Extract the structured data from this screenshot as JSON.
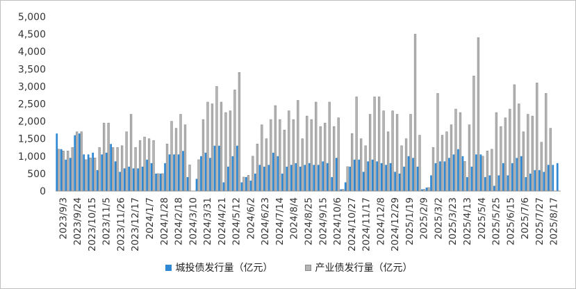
{
  "chart_data": {
    "type": "bar",
    "ylim": [
      0,
      5000
    ],
    "yticks": [
      "0",
      "500",
      "1,000",
      "1,500",
      "2,000",
      "2,500",
      "3,000",
      "3,500",
      "4,000",
      "4,500",
      "5,000"
    ],
    "grid": false,
    "legend_position": "bottom",
    "colors": {
      "chengtou": "#2e88d3",
      "chanye": "#b4b4b4"
    },
    "xtick_labels": [
      "2023/9/3",
      "2023/9/24",
      "2023/10/15",
      "2023/11/5",
      "2023/11/26",
      "2023/12/17",
      "2024/1/7",
      "2024/1/28",
      "2024/2/18",
      "2024/3/10",
      "2024/3/31",
      "2024/4/21",
      "2024/5/12",
      "2024/6/2",
      "2024/6/23",
      "2024/7/14",
      "2024/8/4",
      "2024/8/25",
      "2024/9/15",
      "2024/10/6",
      "2024/10/27",
      "2024/11/17",
      "2024/12/8",
      "2024/12/29",
      "2025/1/19",
      "2025/2/9",
      "2025/3/2",
      "2025/3/23",
      "2025/4/13",
      "2025/5/4",
      "2025/5/25",
      "2025/6/15",
      "2025/7/6",
      "2025/7/27",
      "2025/8/17"
    ],
    "series": [
      {
        "name": "城投债发行量（亿元）",
        "values": [
          1650,
          1200,
          900,
          950,
          1600,
          1650,
          1050,
          1050,
          1100,
          600,
          1050,
          1100,
          1350,
          850,
          550,
          650,
          700,
          650,
          650,
          700,
          900,
          800,
          500,
          500,
          800,
          1050,
          1050,
          1050,
          1150,
          400,
          0,
          350,
          1000,
          1100,
          950,
          1300,
          1300,
          250,
          700,
          1000,
          1300,
          250,
          400,
          300,
          500,
          750,
          700,
          750,
          1100,
          1000,
          500,
          700,
          750,
          800,
          700,
          750,
          800,
          750,
          750,
          850,
          800,
          400,
          950,
          50,
          250,
          700,
          900,
          900,
          550,
          850,
          900,
          850,
          800,
          750,
          800,
          550,
          500,
          700,
          1000,
          950,
          700,
          50,
          100,
          450,
          800,
          850,
          850,
          950,
          1050,
          1200,
          1000,
          400,
          700,
          1050,
          1050,
          400,
          450,
          150,
          450,
          800,
          450,
          800,
          950,
          1000,
          400,
          500,
          600,
          600,
          550,
          750,
          750,
          800
        ]
      },
      {
        "name": "产业债发行量（亿元）",
        "values": [
          1200,
          1150,
          1150,
          1250,
          1700,
          1700,
          900,
          950,
          950,
          1250,
          1950,
          1950,
          1250,
          1250,
          1300,
          1700,
          2200,
          1250,
          1450,
          1550,
          1500,
          1450,
          500,
          500,
          1350,
          2000,
          1800,
          2200,
          1900,
          750,
          0,
          900,
          2050,
          2550,
          2500,
          3000,
          2550,
          2250,
          2300,
          2900,
          3400,
          400,
          450,
          1000,
          1350,
          1900,
          1500,
          2050,
          2450,
          2050,
          1750,
          2300,
          2050,
          2600,
          1500,
          2150,
          2050,
          2550,
          1850,
          1950,
          2550,
          1850,
          2100,
          50,
          700,
          1650,
          2700,
          1500,
          1300,
          2200,
          2700,
          2700,
          2300,
          1700,
          2300,
          2200,
          1300,
          1500,
          2200,
          4500,
          1600,
          50,
          100,
          1250,
          2800,
          1600,
          1700,
          1900,
          2350,
          2250,
          850,
          1900,
          3300,
          4400,
          1000,
          1150,
          1200,
          2250,
          1850,
          2100,
          2350,
          3050,
          2500,
          1700,
          2200,
          2150,
          3100,
          1400,
          2800,
          1800
        ]
      }
    ]
  }
}
